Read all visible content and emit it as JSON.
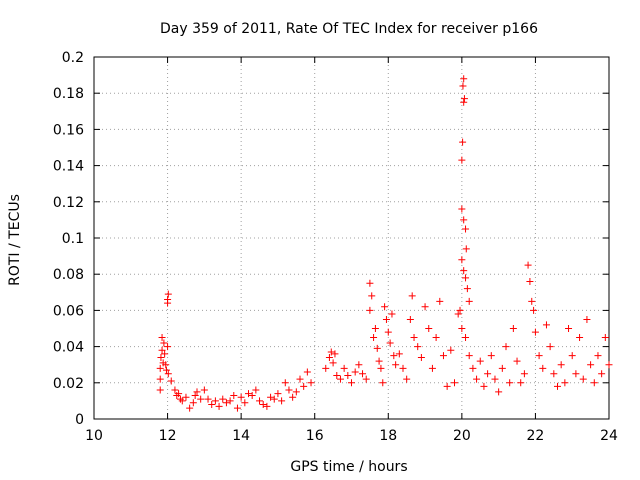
{
  "chart_data": {
    "type": "scatter",
    "title": "Day 359 of 2011, Rate Of TEC Index for receiver p166",
    "xlabel": "GPS time / hours",
    "ylabel": "ROTI / TECUs",
    "xlim": [
      10,
      24
    ],
    "ylim": [
      0,
      0.2
    ],
    "x_ticks": [
      10,
      12,
      14,
      16,
      18,
      20,
      22,
      24
    ],
    "x_tick_labels": [
      "10",
      "12",
      "14",
      "16",
      "18",
      "20",
      "22",
      "24"
    ],
    "y_ticks": [
      0,
      0.02,
      0.04,
      0.06,
      0.08,
      0.1,
      0.12,
      0.14,
      0.16,
      0.18,
      0.2
    ],
    "y_tick_labels": [
      "0",
      "0.02",
      "0.04",
      "0.06",
      "0.08",
      "0.1",
      "0.12",
      "0.14",
      "0.16",
      "0.18",
      "0.2"
    ],
    "grid": true,
    "marker": "+",
    "marker_color": "#ff0000",
    "series": [
      {
        "name": "ROTI",
        "points": [
          [
            11.8,
            0.016
          ],
          [
            11.8,
            0.022
          ],
          [
            11.8,
            0.028
          ],
          [
            11.82,
            0.034
          ],
          [
            11.85,
            0.038
          ],
          [
            11.85,
            0.045
          ],
          [
            11.88,
            0.031
          ],
          [
            11.9,
            0.042
          ],
          [
            11.92,
            0.036
          ],
          [
            11.95,
            0.03
          ],
          [
            11.97,
            0.027
          ],
          [
            12.0,
            0.04
          ],
          [
            12.02,
            0.025
          ],
          [
            12.0,
            0.066
          ],
          [
            12.02,
            0.069
          ],
          [
            12.0,
            0.064
          ],
          [
            12.1,
            0.021
          ],
          [
            12.2,
            0.016
          ],
          [
            12.25,
            0.013
          ],
          [
            12.3,
            0.014
          ],
          [
            12.35,
            0.011
          ],
          [
            12.4,
            0.01
          ],
          [
            12.5,
            0.012
          ],
          [
            12.6,
            0.006
          ],
          [
            12.7,
            0.009
          ],
          [
            12.75,
            0.013
          ],
          [
            12.8,
            0.015
          ],
          [
            12.9,
            0.011
          ],
          [
            13.0,
            0.016
          ],
          [
            13.1,
            0.011
          ],
          [
            13.2,
            0.008
          ],
          [
            13.3,
            0.01
          ],
          [
            13.4,
            0.007
          ],
          [
            13.5,
            0.011
          ],
          [
            13.6,
            0.009
          ],
          [
            13.7,
            0.01
          ],
          [
            13.8,
            0.013
          ],
          [
            13.9,
            0.006
          ],
          [
            14.0,
            0.012
          ],
          [
            14.1,
            0.009
          ],
          [
            14.2,
            0.014
          ],
          [
            14.3,
            0.013
          ],
          [
            14.4,
            0.016
          ],
          [
            14.5,
            0.01
          ],
          [
            14.6,
            0.008
          ],
          [
            14.7,
            0.007
          ],
          [
            14.8,
            0.012
          ],
          [
            14.9,
            0.011
          ],
          [
            15.0,
            0.014
          ],
          [
            15.1,
            0.01
          ],
          [
            15.2,
            0.02
          ],
          [
            15.3,
            0.016
          ],
          [
            15.4,
            0.012
          ],
          [
            15.5,
            0.015
          ],
          [
            15.6,
            0.022
          ],
          [
            15.7,
            0.018
          ],
          [
            15.8,
            0.026
          ],
          [
            15.9,
            0.02
          ],
          [
            16.3,
            0.028
          ],
          [
            16.4,
            0.034
          ],
          [
            16.45,
            0.037
          ],
          [
            16.5,
            0.031
          ],
          [
            16.55,
            0.036
          ],
          [
            16.6,
            0.024
          ],
          [
            16.7,
            0.022
          ],
          [
            16.8,
            0.028
          ],
          [
            16.9,
            0.024
          ],
          [
            17.0,
            0.02
          ],
          [
            17.1,
            0.026
          ],
          [
            17.2,
            0.03
          ],
          [
            17.3,
            0.025
          ],
          [
            17.4,
            0.022
          ],
          [
            17.5,
            0.075
          ],
          [
            17.55,
            0.068
          ],
          [
            17.5,
            0.06
          ],
          [
            17.6,
            0.045
          ],
          [
            17.65,
            0.05
          ],
          [
            17.7,
            0.039
          ],
          [
            17.75,
            0.032
          ],
          [
            17.8,
            0.028
          ],
          [
            17.85,
            0.02
          ],
          [
            17.9,
            0.062
          ],
          [
            17.95,
            0.055
          ],
          [
            18.0,
            0.048
          ],
          [
            18.05,
            0.042
          ],
          [
            18.1,
            0.058
          ],
          [
            18.15,
            0.035
          ],
          [
            18.2,
            0.03
          ],
          [
            18.3,
            0.036
          ],
          [
            18.4,
            0.028
          ],
          [
            18.5,
            0.022
          ],
          [
            18.6,
            0.055
          ],
          [
            18.65,
            0.068
          ],
          [
            18.7,
            0.045
          ],
          [
            18.8,
            0.04
          ],
          [
            18.9,
            0.034
          ],
          [
            19.0,
            0.062
          ],
          [
            19.1,
            0.05
          ],
          [
            19.2,
            0.028
          ],
          [
            19.3,
            0.045
          ],
          [
            19.4,
            0.065
          ],
          [
            19.5,
            0.035
          ],
          [
            19.6,
            0.018
          ],
          [
            19.7,
            0.038
          ],
          [
            19.8,
            0.02
          ],
          [
            19.9,
            0.058
          ],
          [
            20.0,
            0.143
          ],
          [
            20.02,
            0.153
          ],
          [
            20.05,
            0.175
          ],
          [
            20.07,
            0.177
          ],
          [
            20.03,
            0.184
          ],
          [
            20.05,
            0.188
          ],
          [
            20.0,
            0.116
          ],
          [
            20.05,
            0.11
          ],
          [
            20.1,
            0.105
          ],
          [
            20.12,
            0.094
          ],
          [
            20.0,
            0.088
          ],
          [
            20.05,
            0.082
          ],
          [
            20.1,
            0.078
          ],
          [
            20.15,
            0.072
          ],
          [
            19.95,
            0.06
          ],
          [
            20.2,
            0.065
          ],
          [
            20.0,
            0.05
          ],
          [
            20.1,
            0.045
          ],
          [
            20.2,
            0.035
          ],
          [
            20.3,
            0.028
          ],
          [
            20.4,
            0.022
          ],
          [
            20.5,
            0.032
          ],
          [
            20.6,
            0.018
          ],
          [
            20.7,
            0.025
          ],
          [
            20.8,
            0.035
          ],
          [
            20.9,
            0.022
          ],
          [
            21.0,
            0.015
          ],
          [
            21.1,
            0.028
          ],
          [
            21.2,
            0.04
          ],
          [
            21.3,
            0.02
          ],
          [
            21.4,
            0.05
          ],
          [
            21.5,
            0.032
          ],
          [
            21.6,
            0.02
          ],
          [
            21.7,
            0.025
          ],
          [
            21.8,
            0.085
          ],
          [
            21.85,
            0.076
          ],
          [
            21.9,
            0.065
          ],
          [
            21.95,
            0.06
          ],
          [
            22.0,
            0.048
          ],
          [
            22.1,
            0.035
          ],
          [
            22.2,
            0.028
          ],
          [
            22.3,
            0.052
          ],
          [
            22.4,
            0.04
          ],
          [
            22.5,
            0.025
          ],
          [
            22.6,
            0.018
          ],
          [
            22.7,
            0.03
          ],
          [
            22.8,
            0.02
          ],
          [
            22.9,
            0.05
          ],
          [
            23.0,
            0.035
          ],
          [
            23.1,
            0.025
          ],
          [
            23.2,
            0.045
          ],
          [
            23.3,
            0.022
          ],
          [
            23.4,
            0.055
          ],
          [
            23.5,
            0.03
          ],
          [
            23.6,
            0.02
          ],
          [
            23.7,
            0.035
          ],
          [
            23.8,
            0.025
          ],
          [
            23.9,
            0.045
          ],
          [
            24.0,
            0.03
          ]
        ]
      }
    ]
  }
}
